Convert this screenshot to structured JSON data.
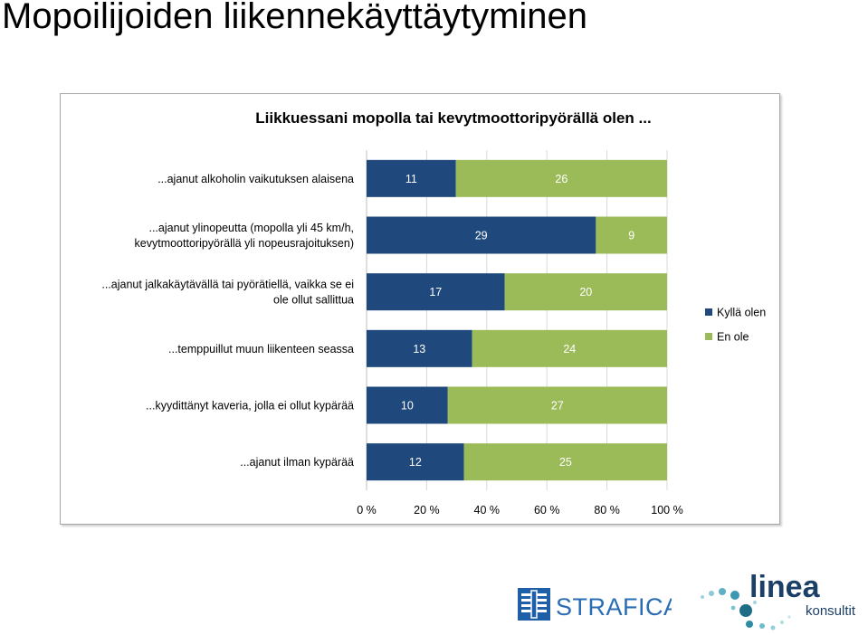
{
  "slide": {
    "title": "Mopoilijoiden liikennekäyttäytyminen"
  },
  "chart_data": {
    "type": "bar",
    "orientation": "horizontal",
    "stacked": "percent",
    "title": "Liikkuessani mopolla tai kevytmoottoripyörällä olen ...",
    "categories": [
      "...ajanut alkoholin vaikutuksen alaisena",
      "...ajanut ylinopeutta (mopolla yli 45 km/h, kevytmoottoripyörällä yli nopeusrajoituksen)",
      "...ajanut jalkakäytävällä tai pyörätiellä, vaikka se ei ole ollut sallittua",
      "...temppuillut muun liikenteen seassa",
      "...kyydittänyt kaveria, jolla ei ollut kypärää",
      "...ajanut ilman kypärää"
    ],
    "category_label_lines": [
      [
        "...ajanut alkoholin vaikutuksen alaisena"
      ],
      [
        "...ajanut ylinopeutta (mopolla yli 45 km/h,",
        "kevytmoottoripyörällä yli nopeusrajoituksen)"
      ],
      [
        "...ajanut jalkakäytävällä tai pyörätiellä, vaikka se ei",
        "ole ollut sallittua"
      ],
      [
        "...temppuillut muun liikenteen seassa"
      ],
      [
        "...kyydittänyt kaveria, jolla ei ollut kypärää"
      ],
      [
        "...ajanut ilman kypärää"
      ]
    ],
    "series": [
      {
        "name": "Kyllä olen",
        "values": [
          11,
          29,
          17,
          13,
          10,
          12
        ],
        "color": "#1f497d"
      },
      {
        "name": "En ole",
        "values": [
          26,
          9,
          20,
          24,
          27,
          25
        ],
        "color": "#9bbb59"
      }
    ],
    "x_ticks": [
      "0 %",
      "20 %",
      "40 %",
      "60 %",
      "80 %",
      "100 %"
    ],
    "xlim": [
      0,
      100
    ],
    "grid": true,
    "legend_position": "right",
    "data_labels": true
  },
  "logos": {
    "strafica": {
      "text": "STRAFICA",
      "icon": "strafica-logo-mark"
    },
    "linea": {
      "text_main": "linea",
      "text_sub": "konsultit",
      "icon": "linea-dots-mark"
    }
  }
}
